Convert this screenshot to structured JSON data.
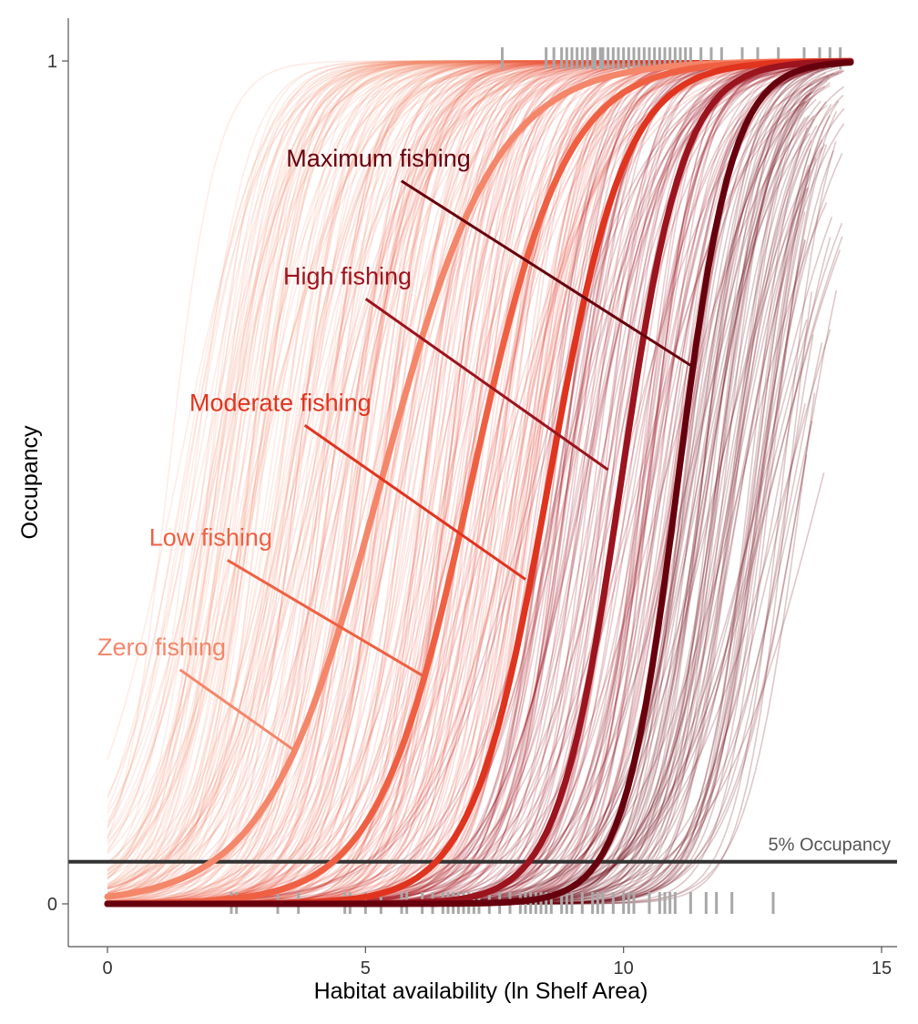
{
  "chart_data": {
    "type": "line",
    "title": "",
    "xlabel": "Habitat availability (ln Shelf Area)",
    "ylabel": "Occupancy",
    "xlim": [
      -0.75,
      15.2
    ],
    "ylim": [
      -0.05,
      1.05
    ],
    "x_ticks": [
      {
        "value": 0,
        "label": "0"
      },
      {
        "value": 5,
        "label": "5"
      },
      {
        "value": 10,
        "label": "10"
      },
      {
        "value": 15,
        "label": "15"
      }
    ],
    "y_ticks": [
      {
        "value": 0,
        "label": "0"
      },
      {
        "value": 1,
        "label": "1"
      }
    ],
    "grid": false,
    "series": [
      {
        "name": "Zero fishing",
        "color": "#f4866a",
        "midpoint": 5.3,
        "slope": 0.9,
        "label_x": 1.05,
        "label_y": 0.295,
        "pointer_x": 3.6,
        "pointer_y": 0.183
      },
      {
        "name": "Low fishing",
        "color": "#ef6042",
        "midpoint": 7.05,
        "slope": 1.1,
        "label_x": 2.0,
        "label_y": 0.425,
        "pointer_x": 6.1,
        "pointer_y": 0.271
      },
      {
        "name": "Moderate fishing",
        "color": "#e0341e",
        "midpoint": 8.55,
        "slope": 1.35,
        "label_x": 3.35,
        "label_y": 0.585,
        "pointer_x": 8.1,
        "pointer_y": 0.385
      },
      {
        "name": "High fishing",
        "color": "#9b141e",
        "midpoint": 9.95,
        "slope": 1.65,
        "label_x": 4.65,
        "label_y": 0.735,
        "pointer_x": 9.7,
        "pointer_y": 0.515
      },
      {
        "name": "Maximum fishing",
        "color": "#67000d",
        "midpoint": 11.05,
        "slope": 1.9,
        "label_x": 5.25,
        "label_y": 0.875,
        "pointer_x": 11.4,
        "pointer_y": 0.635
      }
    ],
    "reference_line": {
      "y": 0.05,
      "label": "5% Occupancy",
      "color": "#333333"
    },
    "rug_top_x": [
      7.65,
      8.5,
      8.65,
      8.8,
      8.9,
      9.0,
      9.1,
      9.2,
      9.3,
      9.4,
      9.45,
      9.55,
      9.6,
      9.7,
      9.8,
      9.9,
      10.0,
      10.1,
      10.2,
      10.3,
      10.4,
      10.5,
      10.6,
      10.7,
      10.8,
      10.9,
      11.0,
      11.1,
      11.2,
      11.3,
      11.5,
      11.7,
      11.9,
      12.3,
      12.6,
      13.0,
      13.5,
      13.8,
      14.0,
      14.2
    ],
    "rug_bottom_x": [
      2.4,
      2.5,
      3.3,
      3.7,
      4.6,
      4.7,
      5.0,
      5.3,
      5.7,
      5.8,
      6.1,
      6.3,
      6.5,
      6.6,
      6.7,
      6.8,
      6.9,
      7.0,
      7.1,
      7.2,
      7.4,
      7.6,
      7.8,
      8.0,
      8.1,
      8.2,
      8.3,
      8.4,
      8.5,
      8.6,
      8.8,
      8.9,
      9.0,
      9.2,
      9.4,
      9.5,
      9.6,
      9.8,
      10.0,
      10.1,
      10.2,
      10.5,
      10.7,
      10.8,
      10.9,
      11.0,
      11.3,
      11.6,
      11.8,
      12.1,
      12.9
    ],
    "rug_color": "#a8a8a8"
  }
}
